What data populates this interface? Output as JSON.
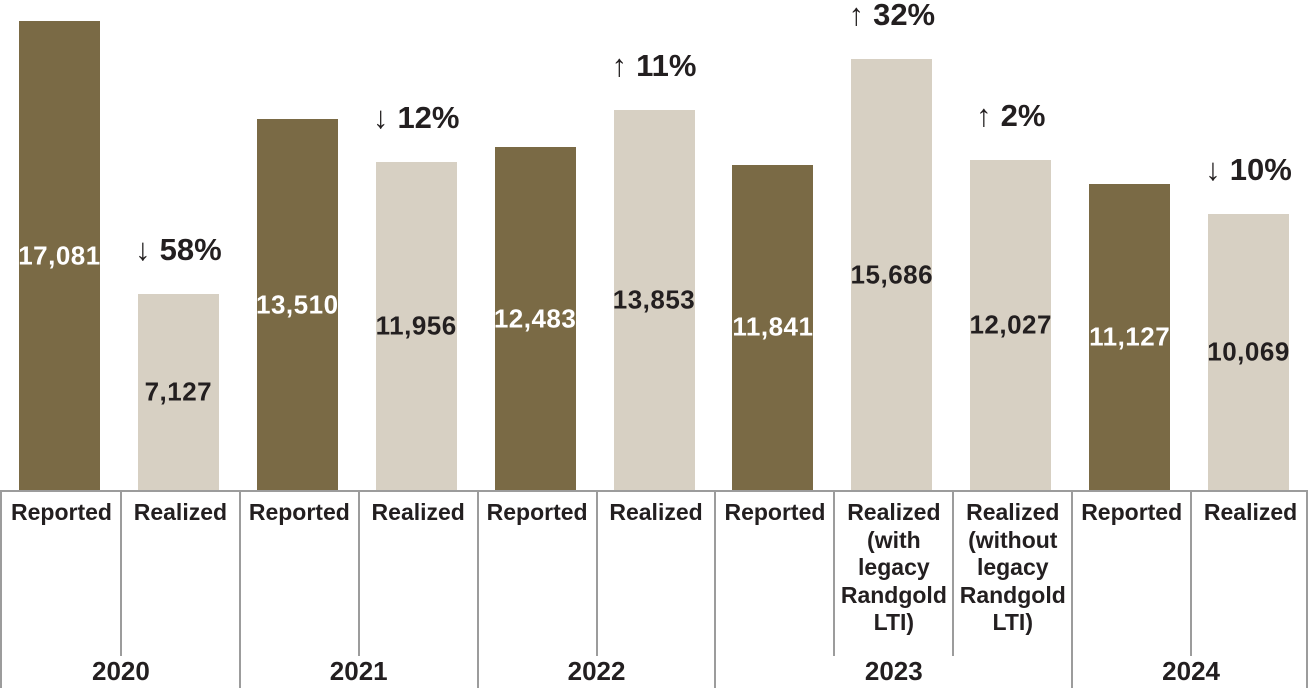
{
  "colors": {
    "reported_bar": "#7A6A45",
    "realized_bar": "#D7D0C3",
    "text": "#231F20",
    "value_text_on_reported": "#FFFFFF",
    "border": "#9C9C9C",
    "background": "#FFFFFF"
  },
  "chart_data": {
    "type": "bar",
    "title": "",
    "grid": false,
    "legend_position": "none",
    "ylim": [
      0,
      17850
    ],
    "groups": [
      {
        "year": "2020",
        "columns": [
          {
            "label": "Reported",
            "series": "reported",
            "value": 17081,
            "value_label": "17,081"
          },
          {
            "label": "Realized",
            "series": "realized",
            "value": 7127,
            "value_label": "7,127",
            "change": {
              "direction": "down",
              "arrow": "↓",
              "pct": "58%",
              "display": "↓ 58%"
            }
          }
        ]
      },
      {
        "year": "2021",
        "columns": [
          {
            "label": "Reported",
            "series": "reported",
            "value": 13510,
            "value_label": "13,510"
          },
          {
            "label": "Realized",
            "series": "realized",
            "value": 11956,
            "value_label": "11,956",
            "change": {
              "direction": "down",
              "arrow": "↓",
              "pct": "12%",
              "display": "↓ 12%"
            }
          }
        ]
      },
      {
        "year": "2022",
        "columns": [
          {
            "label": "Reported",
            "series": "reported",
            "value": 12483,
            "value_label": "12,483"
          },
          {
            "label": "Realized",
            "series": "realized",
            "value": 13853,
            "value_label": "13,853",
            "change": {
              "direction": "up",
              "arrow": "↑",
              "pct": "11%",
              "display": "↑ 11%"
            }
          }
        ]
      },
      {
        "year": "2023",
        "columns": [
          {
            "label": "Reported",
            "series": "reported",
            "value": 11841,
            "value_label": "11,841"
          },
          {
            "label": "Realized (with legacy Randgold LTI)",
            "series": "realized",
            "value": 15686,
            "value_label": "15,686",
            "change": {
              "direction": "up",
              "arrow": "↑",
              "pct": "32%",
              "display": "↑ 32%"
            }
          },
          {
            "label": "Realized (without legacy Randgold LTI)",
            "series": "realized",
            "value": 12027,
            "value_label": "12,027",
            "change": {
              "direction": "up",
              "arrow": "↑",
              "pct": "2%",
              "display": "↑ 2%"
            }
          }
        ]
      },
      {
        "year": "2024",
        "columns": [
          {
            "label": "Reported",
            "series": "reported",
            "value": 11127,
            "value_label": "11,127"
          },
          {
            "label": "Realized",
            "series": "realized",
            "value": 10069,
            "value_label": "10,069",
            "change": {
              "direction": "down",
              "arrow": "↓",
              "pct": "10%",
              "display": "↓ 10%"
            }
          }
        ]
      }
    ]
  }
}
